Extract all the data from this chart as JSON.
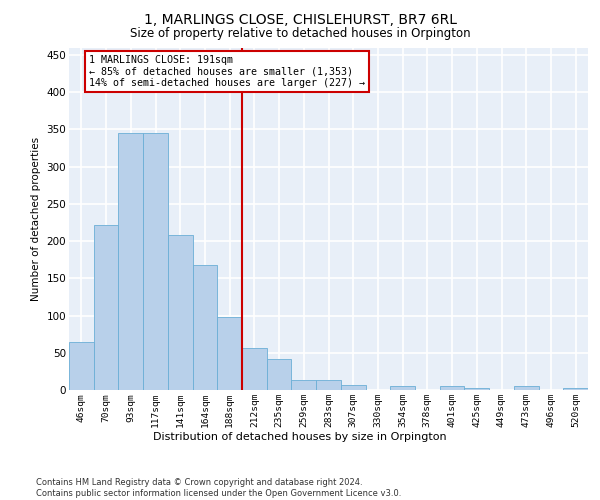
{
  "title1": "1, MARLINGS CLOSE, CHISLEHURST, BR7 6RL",
  "title2": "Size of property relative to detached houses in Orpington",
  "xlabel": "Distribution of detached houses by size in Orpington",
  "ylabel": "Number of detached properties",
  "categories": [
    "46sqm",
    "70sqm",
    "93sqm",
    "117sqm",
    "141sqm",
    "164sqm",
    "188sqm",
    "212sqm",
    "235sqm",
    "259sqm",
    "283sqm",
    "307sqm",
    "330sqm",
    "354sqm",
    "378sqm",
    "401sqm",
    "425sqm",
    "449sqm",
    "473sqm",
    "496sqm",
    "520sqm"
  ],
  "values": [
    65,
    222,
    345,
    345,
    208,
    168,
    98,
    57,
    42,
    13,
    13,
    7,
    0,
    6,
    0,
    5,
    3,
    0,
    5,
    0,
    3
  ],
  "bar_color": "#B8D0EA",
  "bar_edge_color": "#6BAED6",
  "vline_x": 6.5,
  "vline_color": "#CC0000",
  "annotation_text": "1 MARLINGS CLOSE: 191sqm\n← 85% of detached houses are smaller (1,353)\n14% of semi-detached houses are larger (227) →",
  "annotation_box_color": "#CC0000",
  "annotation_fill_color": "#FFFFFF",
  "ylim": [
    0,
    460
  ],
  "yticks": [
    0,
    50,
    100,
    150,
    200,
    250,
    300,
    350,
    400,
    450
  ],
  "footer": "Contains HM Land Registry data © Crown copyright and database right 2024.\nContains public sector information licensed under the Open Government Licence v3.0.",
  "bg_color": "#E8EFF8",
  "grid_color": "#FFFFFF"
}
